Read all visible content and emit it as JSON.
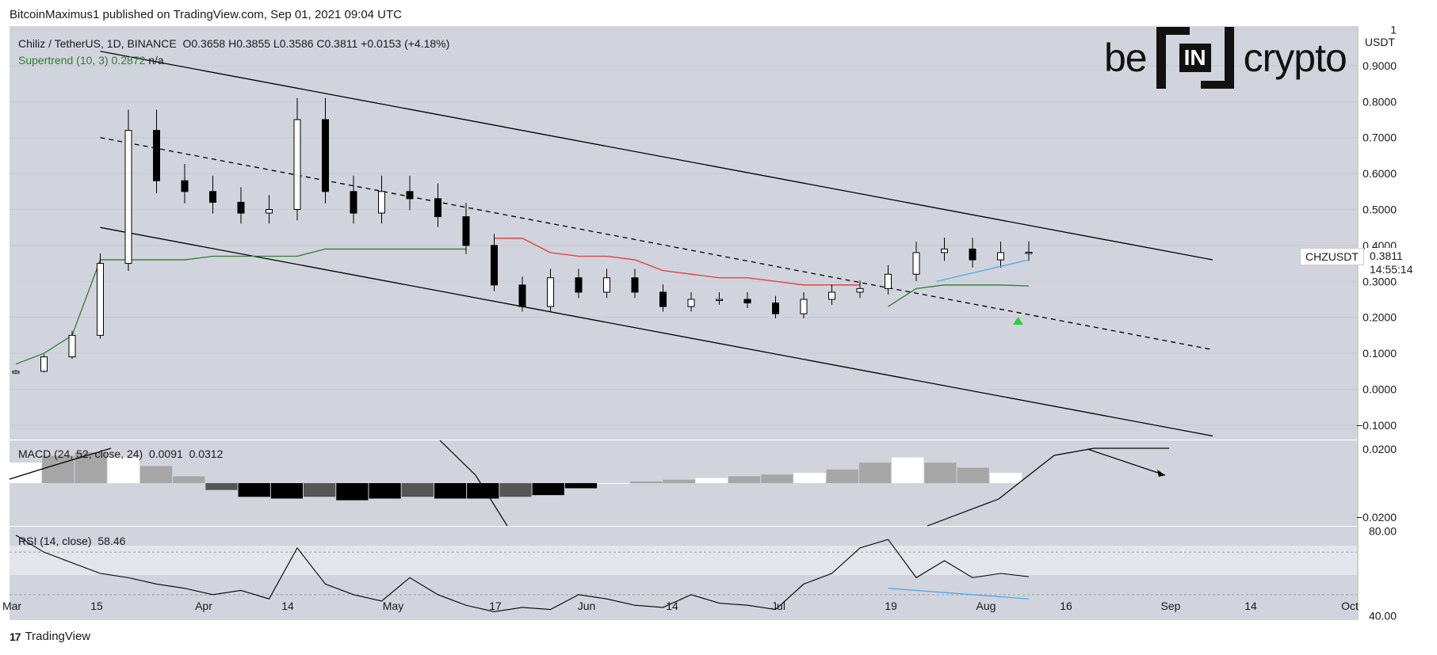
{
  "header": {
    "published_by": "BitcoinMaximus1 published on TradingView.com, Sep 01, 2021 09:04 UTC"
  },
  "legend": {
    "symbol": "Chiliz / TetherUS, 1D, BINANCE",
    "ohlc": "O0.3658  H0.3855  L0.3586  C0.3811  +0.0153 (+4.18%)",
    "supertrend_label": "Supertrend (10, 3)",
    "supertrend_value": "0.2872",
    "supertrend_na": "n/a"
  },
  "brand": {
    "left": "be",
    "mid": "IN",
    "right": "crypto"
  },
  "ticker": {
    "symbol": "CHZUSDT",
    "price": "0.3811",
    "countdown": "14:55:14"
  },
  "macd": {
    "label": "MACD (24, 52, close, 24)",
    "v1": "0.0091",
    "v2": "0.0312"
  },
  "rsi": {
    "label": "RSI (14, close)",
    "value": "58.46"
  },
  "footer": {
    "logo": "17",
    "name": "TradingView"
  },
  "colors": {
    "background": "#d1d4dc",
    "candle_up": "#ffffff",
    "candle_down": "#000000",
    "supertrend_up": "#2e7d32",
    "supertrend_down": "#e53935",
    "trendline_blue": "#42a5f5",
    "arrow_green": "#2ecc40"
  },
  "chart_data": [
    {
      "type": "line",
      "symbol": "CHZUSDT",
      "timeframe": "1D",
      "ylabel": "USDT",
      "ylim": [
        -0.14,
        1.01
      ],
      "y_ticks": [
        "1",
        "0.9000",
        "0.8000",
        "0.7000",
        "0.6000",
        "0.5000",
        "0.4000",
        "0.3000",
        "0.2000",
        "0.1000",
        "0.0000",
        "−0.1000"
      ],
      "x_ticks": [
        "Mar",
        "15",
        "Apr",
        "14",
        "May",
        "17",
        "Jun",
        "14",
        "Jul",
        "19",
        "Aug",
        "16",
        "Sep",
        "14",
        "Oct"
      ],
      "x": [
        "Mar 01",
        "Mar 05",
        "Mar 09",
        "Mar 12",
        "Mar 15",
        "Mar 20",
        "Mar 25",
        "Apr 01",
        "Apr 07",
        "Apr 13",
        "Apr 16",
        "Apr 20",
        "Apr 25",
        "May 01",
        "May 06",
        "May 12",
        "May 17",
        "May 20",
        "May 24",
        "Jun 01",
        "Jun 07",
        "Jun 14",
        "Jun 20",
        "Jun 25",
        "Jul 01",
        "Jul 07",
        "Jul 13",
        "Jul 19",
        "Jul 25",
        "Aug 01",
        "Aug 06",
        "Aug 10",
        "Aug 14",
        "Aug 18",
        "Aug 22",
        "Aug 26",
        "Sep 01"
      ],
      "close": [
        0.05,
        0.09,
        0.15,
        0.35,
        0.72,
        0.58,
        0.55,
        0.52,
        0.49,
        0.5,
        0.75,
        0.55,
        0.49,
        0.55,
        0.53,
        0.48,
        0.4,
        0.29,
        0.23,
        0.31,
        0.27,
        0.31,
        0.27,
        0.23,
        0.25,
        0.25,
        0.24,
        0.21,
        0.25,
        0.27,
        0.28,
        0.32,
        0.38,
        0.39,
        0.36,
        0.38,
        0.381
      ],
      "series": [
        {
          "name": "Supertrend (10, 3)",
          "values": [
            0.07,
            0.1,
            0.15,
            0.36,
            0.36,
            0.36,
            0.36,
            0.37,
            0.37,
            0.37,
            0.37,
            0.39,
            0.39,
            0.39,
            0.39,
            0.39,
            0.39,
            0.42,
            0.42,
            0.38,
            0.37,
            0.37,
            0.36,
            0.33,
            0.32,
            0.31,
            0.31,
            0.3,
            0.29,
            0.29,
            0.29,
            0.23,
            0.28,
            0.29,
            0.29,
            0.29,
            0.2872
          ]
        }
      ],
      "channel": {
        "upper": [
          [
            0.94,
            "Mar 12"
          ],
          [
            0.36,
            "Sep 14"
          ]
        ],
        "middle": [
          [
            0.7,
            "Mar 12"
          ],
          [
            0.11,
            "Sep 14"
          ]
        ],
        "lower": [
          [
            0.45,
            "Mar 12"
          ],
          [
            -0.13,
            "Sep 14"
          ]
        ]
      }
    },
    {
      "type": "bar",
      "title": "MACD (24, 52, close, 24)",
      "ylim": [
        -0.025,
        0.025
      ],
      "y_ticks": [
        "0.0200",
        "−0.0200"
      ],
      "values": [
        0.012,
        0.016,
        0.018,
        0.015,
        0.01,
        0.004,
        -0.004,
        -0.008,
        -0.009,
        -0.008,
        -0.01,
        -0.009,
        -0.008,
        -0.009,
        -0.009,
        -0.008,
        -0.007,
        -0.003,
        0.0,
        0.001,
        0.002,
        0.003,
        0.004,
        0.005,
        0.006,
        0.008,
        0.012,
        0.015,
        0.012,
        0.009,
        0.006
      ]
    },
    {
      "type": "line",
      "title": "RSI (14, close)",
      "ylim": [
        38,
        82
      ],
      "y_ticks": [
        "80.00",
        "40.00"
      ],
      "values": [
        78,
        70,
        65,
        60,
        58,
        55,
        53,
        50,
        52,
        48,
        72,
        55,
        50,
        47,
        58,
        50,
        45,
        42,
        44,
        43,
        50,
        48,
        45,
        44,
        50,
        46,
        45,
        43,
        55,
        60,
        72,
        76,
        58,
        66,
        58,
        60,
        58.46
      ]
    }
  ]
}
